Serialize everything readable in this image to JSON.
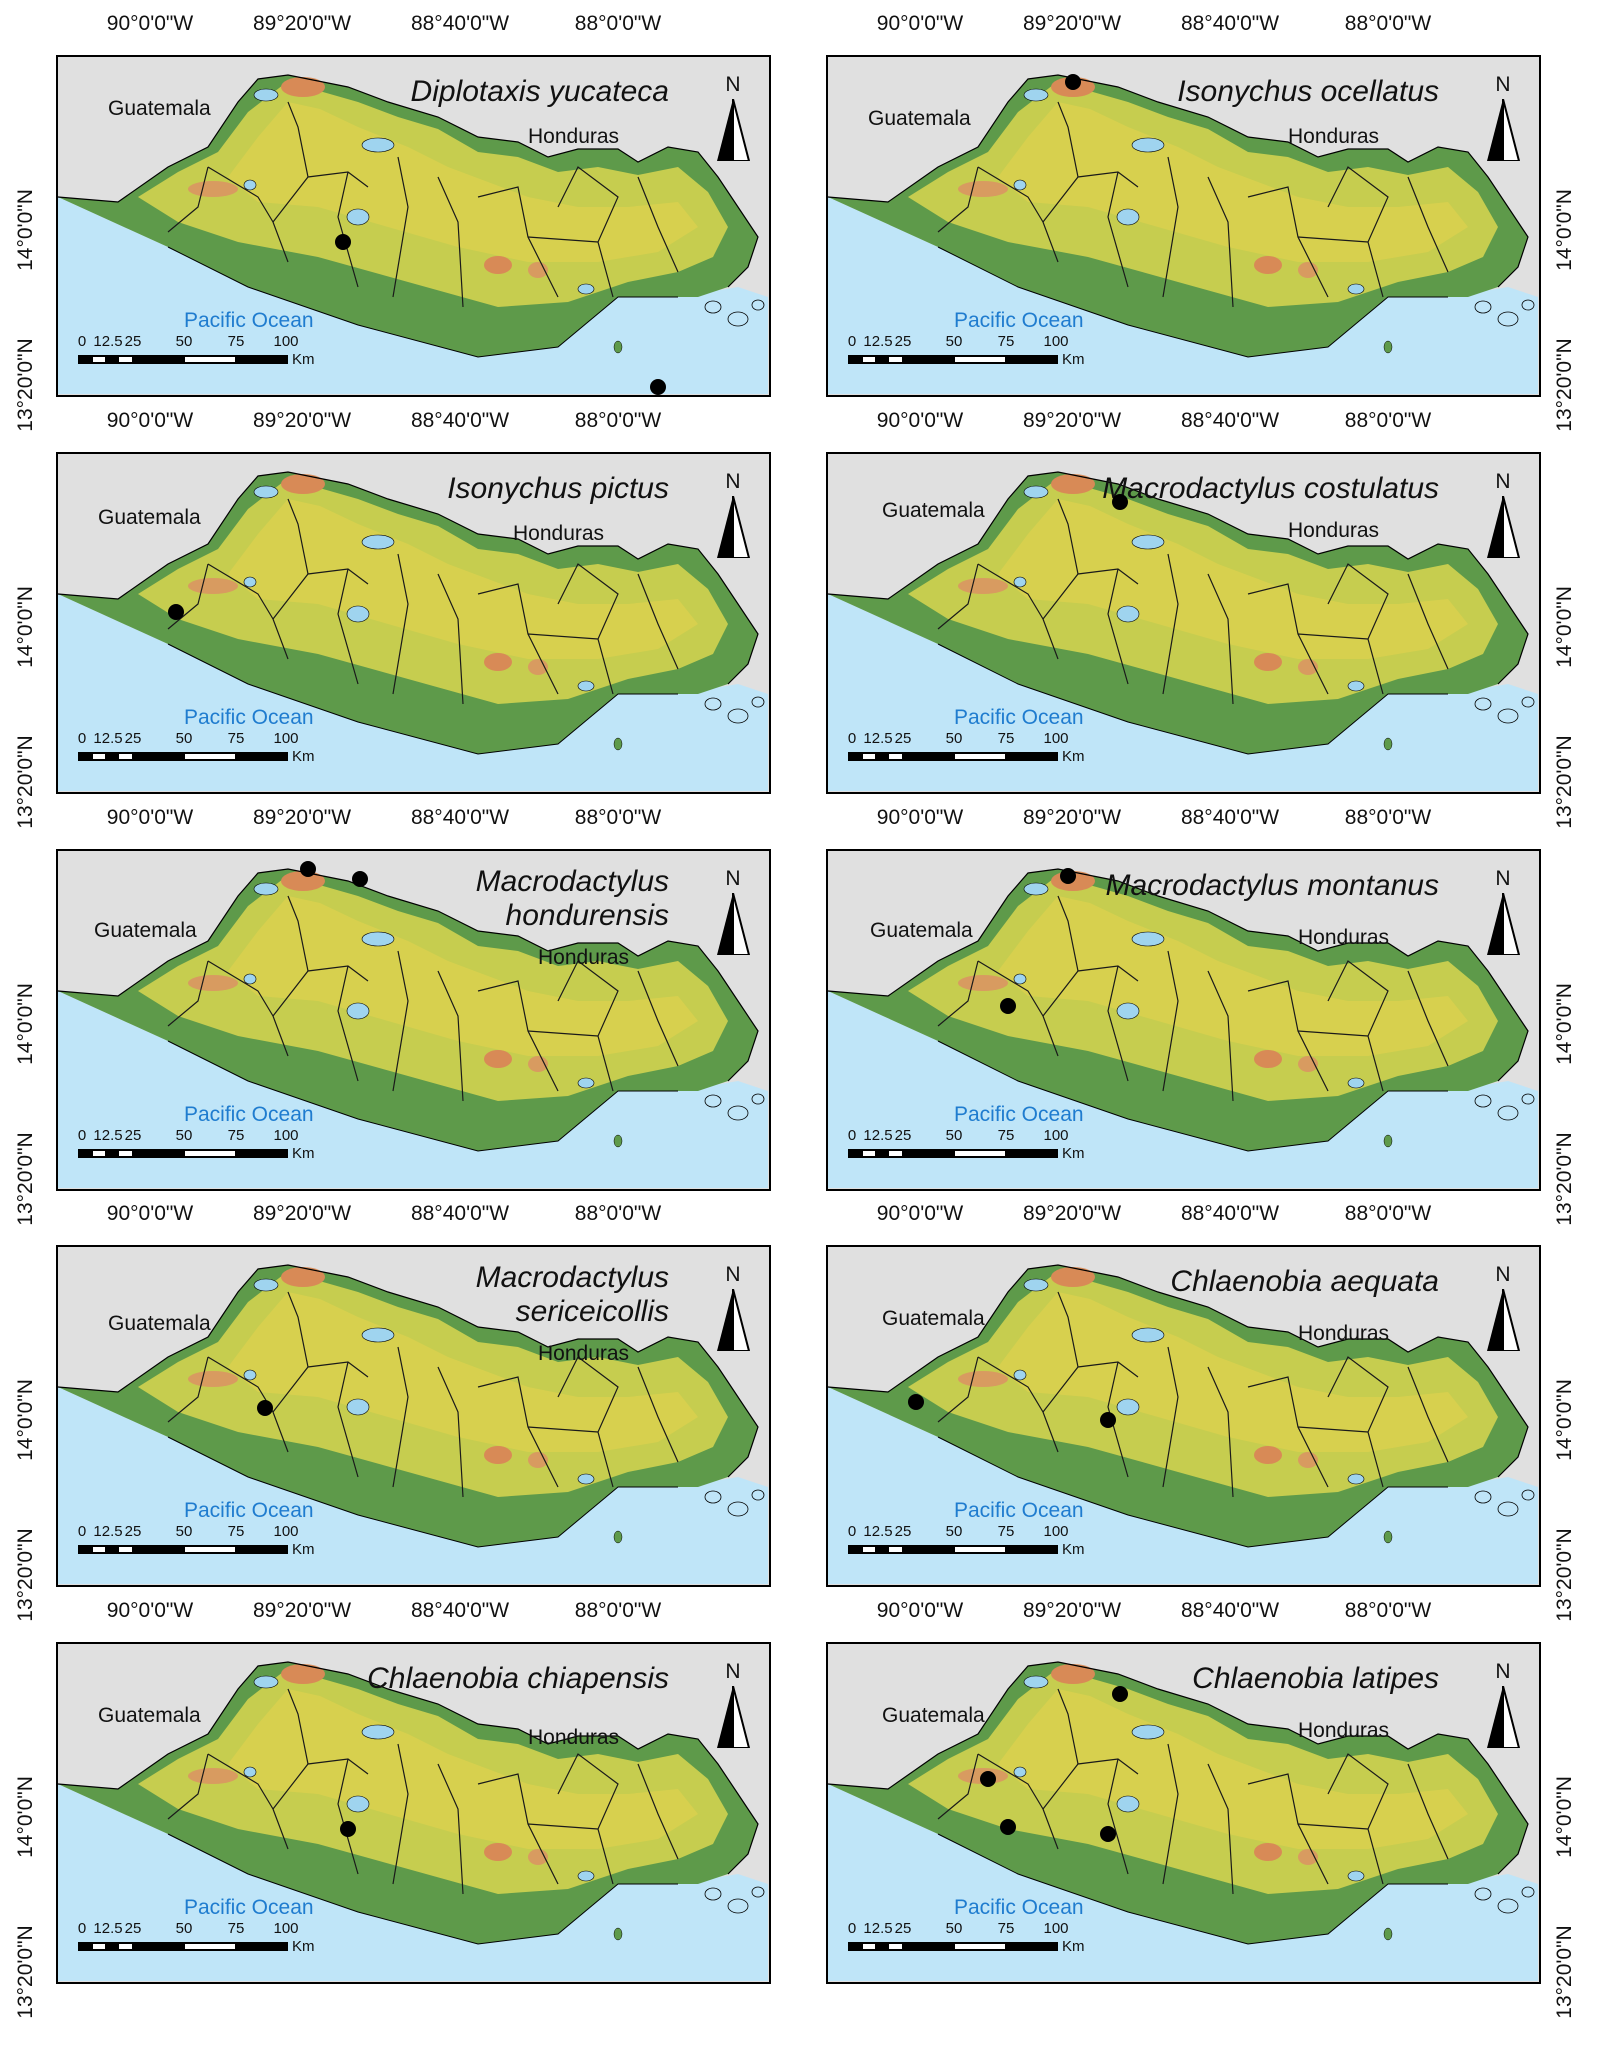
{
  "lon_ticks": [
    "90°0'0\"W",
    "89°20'0\"W",
    "88°40'0\"W",
    "88°0'0\"W"
  ],
  "lat_ticks": [
    "14°0'0\"N",
    "13°20'0\"N"
  ],
  "ocean_label": "Pacific Ocean",
  "north_label": "N",
  "scale": {
    "ticks": [
      "0",
      "12.5",
      "25",
      "50",
      "75",
      "100"
    ],
    "unit": "Km"
  },
  "colors": {
    "ocean": "#bfe5f8",
    "land_low": "#5e9a4a",
    "land_mid": "#c6cd4f",
    "land_high": "#d88a56",
    "background": "#e0e0e0",
    "point": "#000000"
  },
  "panels": [
    {
      "species": "Diplotaxis yucateca",
      "countries": [
        "Guatemala",
        "Honduras"
      ]
    },
    {
      "species": "Isonychus ocellatus",
      "countries": [
        "Guatemala",
        "Honduras"
      ]
    },
    {
      "species": "Isonychus pictus",
      "countries": [
        "Guatemala",
        "Honduras"
      ]
    },
    {
      "species": "Macrodactylus costulatus",
      "countries": [
        "Guatemala",
        "Honduras"
      ]
    },
    {
      "species": "Macrodactylus hondurensis",
      "countries": [
        "Guatemala",
        "Honduras"
      ]
    },
    {
      "species": "Macrodactylus montanus",
      "countries": [
        "Guatemala",
        "Honduras"
      ]
    },
    {
      "species": "Macrodactylus sericeicollis",
      "countries": [
        "Guatemala",
        "Honduras"
      ]
    },
    {
      "species": "Chlaenobia aequata",
      "countries": [
        "Guatemala",
        "Honduras"
      ]
    },
    {
      "species": "Chlaenobia chiapensis",
      "countries": [
        "Guatemala",
        "Honduras"
      ]
    },
    {
      "species": "Chlaenobia latipes",
      "countries": [
        "Guatemala",
        "Honduras"
      ]
    }
  ]
}
